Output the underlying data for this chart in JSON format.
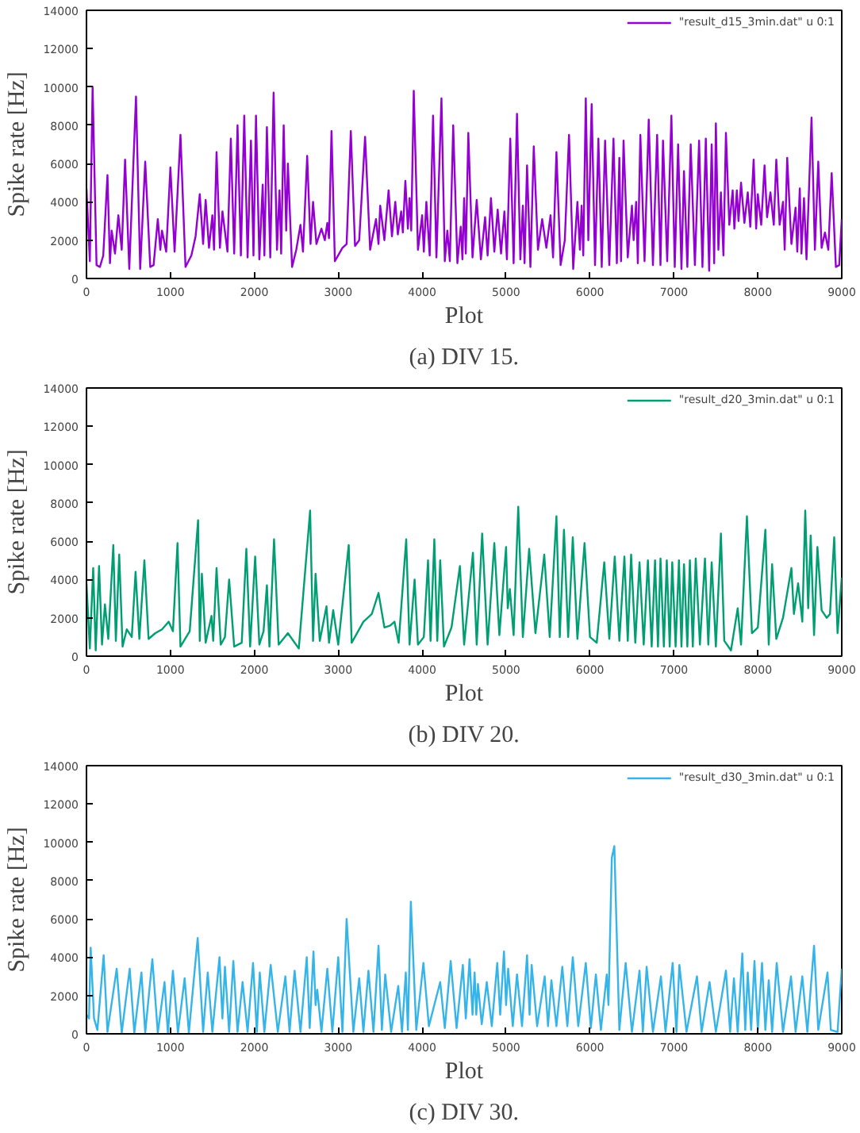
{
  "chart_data": [
    {
      "type": "line",
      "xlabel": "Plot",
      "ylabel": "Spike rate [Hz]",
      "annotations": [
        "(a) DIV 15."
      ],
      "xlim": [
        0,
        9000
      ],
      "ylim": [
        0,
        14000
      ],
      "xticks": [
        0,
        1000,
        2000,
        3000,
        4000,
        5000,
        6000,
        7000,
        8000,
        9000
      ],
      "yticks": [
        0,
        2000,
        4000,
        6000,
        8000,
        10000,
        12000,
        14000
      ],
      "grid": false,
      "legend": "top right",
      "x": [
        0,
        40,
        73,
        120,
        160,
        200,
        250,
        280,
        300,
        340,
        380,
        420,
        460,
        510,
        590,
        640,
        700,
        760,
        800,
        850,
        880,
        900,
        950,
        1000,
        1050,
        1120,
        1180,
        1250,
        1300,
        1350,
        1390,
        1420,
        1460,
        1500,
        1520,
        1550,
        1590,
        1620,
        1680,
        1720,
        1760,
        1800,
        1840,
        1880,
        1920,
        1960,
        1990,
        2020,
        2060,
        2100,
        2120,
        2150,
        2190,
        2230,
        2270,
        2300,
        2320,
        2350,
        2380,
        2400,
        2450,
        2500,
        2550,
        2580,
        2630,
        2670,
        2700,
        2740,
        2800,
        2840,
        2870,
        2890,
        2920,
        2960,
        3050,
        3100,
        3150,
        3200,
        3250,
        3320,
        3380,
        3450,
        3480,
        3500,
        3550,
        3600,
        3640,
        3680,
        3710,
        3750,
        3770,
        3800,
        3830,
        3850,
        3870,
        3900,
        3950,
        4000,
        4020,
        4050,
        4090,
        4130,
        4170,
        4230,
        4270,
        4300,
        4330,
        4370,
        4420,
        4460,
        4480,
        4500,
        4520,
        4550,
        4600,
        4650,
        4700,
        4750,
        4780,
        4820,
        4860,
        4900,
        4940,
        4980,
        5010,
        5050,
        5090,
        5130,
        5170,
        5200,
        5220,
        5250,
        5290,
        5330,
        5380,
        5430,
        5480,
        5530,
        5560,
        5600,
        5650,
        5700,
        5750,
        5800,
        5850,
        5880,
        5900,
        5920,
        5950,
        5980,
        6020,
        6060,
        6100,
        6140,
        6180,
        6230,
        6280,
        6320,
        6350,
        6370,
        6400,
        6450,
        6500,
        6520,
        6550,
        6570,
        6600,
        6650,
        6700,
        6750,
        6800,
        6840,
        6870,
        6920,
        6970,
        7010,
        7050,
        7090,
        7120,
        7160,
        7200,
        7250,
        7300,
        7340,
        7380,
        7420,
        7450,
        7480,
        7500,
        7530,
        7560,
        7590,
        7620,
        7660,
        7700,
        7720,
        7750,
        7770,
        7800,
        7840,
        7880,
        7910,
        7950,
        7980,
        8000,
        8040,
        8080,
        8110,
        8150,
        8190,
        8220,
        8260,
        8300,
        8320,
        8350,
        8400,
        8450,
        8470,
        8500,
        8520,
        8550,
        8580,
        8640,
        8680,
        8720,
        8760,
        8800,
        8840,
        8880,
        8930,
        8970,
        9000
      ],
      "series": [
        {
          "name": "\"result_d15_3min.dat\" u 0:1",
          "color": "#9400d3",
          "values": [
            4700,
            900,
            10000,
            700,
            600,
            1200,
            5400,
            800,
            2500,
            1300,
            3300,
            1500,
            6200,
            500,
            9500,
            500,
            6100,
            600,
            700,
            3100,
            1500,
            2500,
            1400,
            5800,
            1400,
            7500,
            600,
            1200,
            2200,
            4400,
            1800,
            4100,
            1600,
            3300,
            1500,
            6600,
            1600,
            3500,
            1400,
            7300,
            1300,
            8000,
            1200,
            8500,
            1100,
            7200,
            1200,
            8500,
            1000,
            4900,
            1200,
            7900,
            1100,
            9700,
            1500,
            4600,
            1300,
            8000,
            2500,
            6000,
            600,
            1500,
            2800,
            1400,
            6400,
            1800,
            4000,
            1800,
            2600,
            2000,
            2900,
            2100,
            7700,
            900,
            1600,
            1800,
            7700,
            1700,
            2000,
            7400,
            1500,
            3100,
            1800,
            3800,
            2000,
            4600,
            2200,
            4000,
            2300,
            3500,
            2400,
            5100,
            2600,
            4200,
            2500,
            9800,
            1500,
            3300,
            1400,
            4000,
            1200,
            8500,
            1100,
            9400,
            900,
            2500,
            900,
            8000,
            800,
            2700,
            1000,
            4200,
            1300,
            7600,
            1100,
            4100,
            1000,
            3200,
            1200,
            4200,
            1400,
            3600,
            1300,
            3500,
            1000,
            7300,
            800,
            8600,
            1000,
            3800,
            800,
            5900,
            600,
            6900,
            1500,
            3100,
            1600,
            3300,
            1100,
            6600,
            700,
            2000,
            7500,
            500,
            4000,
            1500,
            3800,
            1200,
            9400,
            2000,
            9100,
            700,
            7300,
            600,
            7200,
            700,
            7300,
            800,
            6300,
            900,
            7200,
            1100,
            3800,
            2000,
            4000,
            800,
            7500,
            900,
            8300,
            700,
            7500,
            700,
            7200,
            900,
            8500,
            600,
            7000,
            500,
            5600,
            600,
            7000,
            700,
            7200,
            600,
            7300,
            400,
            7000,
            800,
            8100,
            1500,
            4500,
            1200,
            7600,
            2800,
            4600,
            2600,
            4600,
            3000,
            5000,
            2900,
            4500,
            2700,
            6200,
            2600,
            4400,
            2800,
            5900,
            3200,
            4500,
            2800,
            6200,
            2800,
            4000,
            1500,
            6300,
            1800,
            3700,
            1400,
            4700,
            1300,
            4200,
            1000,
            8400,
            1500,
            6100,
            1600,
            2400,
            1500,
            5500,
            600,
            700,
            3100
          ]
        }
      ]
    },
    {
      "type": "line",
      "xlabel": "Plot",
      "ylabel": "Spike rate [Hz]",
      "annotations": [
        "(b) DIV 20."
      ],
      "xlim": [
        0,
        9000
      ],
      "ylim": [
        0,
        14000
      ],
      "xticks": [
        0,
        1000,
        2000,
        3000,
        4000,
        5000,
        6000,
        7000,
        8000,
        9000
      ],
      "yticks": [
        0,
        2000,
        4000,
        6000,
        8000,
        10000,
        12000,
        14000
      ],
      "grid": false,
      "legend": "top right",
      "x": [
        0,
        40,
        80,
        110,
        150,
        185,
        220,
        260,
        320,
        350,
        390,
        430,
        480,
        540,
        585,
        630,
        690,
        740,
        820,
        900,
        980,
        1030,
        1085,
        1120,
        1230,
        1330,
        1350,
        1375,
        1420,
        1490,
        1510,
        1550,
        1600,
        1650,
        1700,
        1760,
        1850,
        1905,
        1950,
        2010,
        2060,
        2110,
        2150,
        2180,
        2235,
        2290,
        2400,
        2530,
        2665,
        2700,
        2730,
        2780,
        2860,
        2890,
        2940,
        3000,
        3125,
        3160,
        3300,
        3400,
        3480,
        3550,
        3620,
        3670,
        3720,
        3810,
        3850,
        3910,
        3950,
        4020,
        4070,
        4100,
        4145,
        4180,
        4215,
        4260,
        4350,
        4450,
        4500,
        4605,
        4650,
        4715,
        4780,
        4860,
        4920,
        5000,
        5020,
        5045,
        5090,
        5145,
        5200,
        5275,
        5350,
        5455,
        5520,
        5600,
        5640,
        5690,
        5740,
        5795,
        5850,
        5935,
        6000,
        6080,
        6170,
        6230,
        6295,
        6350,
        6410,
        6450,
        6490,
        6540,
        6590,
        6640,
        6690,
        6735,
        6775,
        6810,
        6840,
        6880,
        6915,
        6950,
        6980,
        7020,
        7060,
        7090,
        7120,
        7160,
        7190,
        7225,
        7260,
        7310,
        7370,
        7410,
        7450,
        7500,
        7560,
        7600,
        7680,
        7760,
        7800,
        7870,
        7930,
        8000,
        8090,
        8130,
        8170,
        8220,
        8300,
        8400,
        8430,
        8480,
        8530,
        8565,
        8600,
        8630,
        8670,
        8710,
        8760,
        8820,
        8860,
        8910,
        8950,
        9000
      ],
      "series": [
        {
          "name": "\"result_d20_3min.dat\" u 0:1",
          "color": "#009e73",
          "values": [
            3800,
            400,
            4600,
            300,
            4700,
            600,
            2700,
            900,
            5800,
            800,
            5300,
            500,
            1400,
            1000,
            4400,
            900,
            5000,
            900,
            1200,
            1400,
            1800,
            1300,
            5900,
            500,
            1300,
            7100,
            800,
            4300,
            700,
            2100,
            800,
            4600,
            600,
            1000,
            4000,
            500,
            700,
            5600,
            500,
            5200,
            600,
            1300,
            3700,
            500,
            6100,
            600,
            1200,
            400,
            7600,
            800,
            4300,
            800,
            2600,
            700,
            2400,
            600,
            5800,
            700,
            1800,
            2200,
            3300,
            1500,
            1600,
            1800,
            700,
            6100,
            600,
            4000,
            600,
            1000,
            5000,
            800,
            6100,
            800,
            5000,
            500,
            1500,
            4700,
            600,
            5400,
            600,
            6400,
            600,
            5900,
            1100,
            5700,
            2500,
            3500,
            1100,
            7800,
            1000,
            5600,
            1200,
            5300,
            1000,
            7300,
            1000,
            6600,
            1000,
            6200,
            900,
            5900,
            1000,
            700,
            4900,
            900,
            5200,
            800,
            5200,
            800,
            5300,
            700,
            4900,
            600,
            5000,
            500,
            5000,
            500,
            5100,
            500,
            5000,
            500,
            4900,
            500,
            5000,
            500,
            4800,
            500,
            5000,
            500,
            5100,
            600,
            5100,
            600,
            4900,
            500,
            6400,
            800,
            300,
            2500,
            600,
            7300,
            1200,
            1500,
            6600,
            600,
            4800,
            900,
            2000,
            4600,
            2200,
            3800,
            1800,
            7600,
            2500,
            6300,
            1100,
            5700,
            2400,
            2000,
            2200,
            6200,
            1200,
            4100
          ]
        }
      ]
    },
    {
      "type": "line",
      "xlabel": "Plot",
      "ylabel": "Spike rate [Hz]",
      "annotations": [
        "(c) DIV 30."
      ],
      "xlim": [
        0,
        9000
      ],
      "ylim": [
        0,
        14000
      ],
      "xticks": [
        0,
        1000,
        2000,
        3000,
        4000,
        5000,
        6000,
        7000,
        8000,
        9000
      ],
      "yticks": [
        0,
        2000,
        4000,
        6000,
        8000,
        10000,
        12000,
        14000
      ],
      "grid": false,
      "legend": "top right",
      "x": [
        0,
        30,
        50,
        90,
        130,
        205,
        250,
        360,
        420,
        515,
        570,
        655,
        700,
        785,
        850,
        930,
        970,
        1030,
        1090,
        1170,
        1220,
        1325,
        1390,
        1445,
        1500,
        1585,
        1620,
        1650,
        1700,
        1750,
        1800,
        1860,
        1920,
        1985,
        2030,
        2065,
        2120,
        2195,
        2280,
        2370,
        2420,
        2480,
        2550,
        2625,
        2660,
        2705,
        2730,
        2750,
        2800,
        2870,
        2930,
        3000,
        3050,
        3100,
        3180,
        3250,
        3300,
        3360,
        3420,
        3480,
        3520,
        3560,
        3630,
        3715,
        3760,
        3805,
        3830,
        3865,
        3930,
        4015,
        4080,
        4215,
        4270,
        4340,
        4410,
        4485,
        4520,
        4565,
        4600,
        4625,
        4645,
        4665,
        4710,
        4770,
        4830,
        4895,
        4930,
        4975,
        5000,
        5025,
        5080,
        5130,
        5190,
        5250,
        5280,
        5305,
        5370,
        5460,
        5500,
        5540,
        5600,
        5670,
        5730,
        5795,
        5860,
        5950,
        6010,
        6070,
        6130,
        6200,
        6220,
        6260,
        6290,
        6350,
        6425,
        6500,
        6590,
        6630,
        6675,
        6750,
        6845,
        6900,
        6985,
        7030,
        7065,
        7150,
        7275,
        7330,
        7425,
        7500,
        7620,
        7670,
        7715,
        7760,
        7815,
        7850,
        7880,
        7920,
        7960,
        8000,
        8050,
        8090,
        8130,
        8170,
        8225,
        8300,
        8395,
        8450,
        8530,
        8590,
        8670,
        8720,
        8830,
        8870,
        8950,
        9000
      ],
      "series": [
        {
          "name": "\"result_d30_3min.dat\" u 0:1",
          "color": "#35b4e9",
          "values": [
            1000,
            800,
            4500,
            800,
            200,
            4100,
            100,
            3400,
            50,
            3400,
            50,
            3200,
            50,
            3900,
            50,
            2700,
            50,
            3300,
            50,
            2900,
            50,
            5000,
            100,
            3200,
            100,
            4000,
            800,
            3500,
            100,
            3800,
            100,
            2700,
            100,
            3700,
            100,
            3200,
            100,
            3600,
            100,
            3000,
            100,
            3300,
            100,
            4000,
            300,
            4300,
            1500,
            2300,
            100,
            3400,
            100,
            4000,
            100,
            6000,
            100,
            2900,
            100,
            3300,
            100,
            4600,
            200,
            3100,
            100,
            2500,
            100,
            3200,
            200,
            6900,
            200,
            3700,
            400,
            2700,
            300,
            3800,
            300,
            3600,
            800,
            3900,
            1000,
            3200,
            1000,
            2600,
            500,
            2700,
            400,
            3700,
            1000,
            4300,
            1500,
            3400,
            400,
            3100,
            400,
            4100,
            1000,
            3600,
            400,
            3000,
            400,
            2800,
            400,
            3500,
            400,
            4000,
            400,
            3700,
            300,
            3100,
            200,
            3100,
            1500,
            9200,
            9800,
            200,
            3700,
            100,
            3300,
            100,
            3500,
            100,
            3000,
            100,
            3700,
            100,
            3600,
            100,
            3000,
            100,
            2700,
            100,
            3300,
            100,
            2900,
            100,
            4200,
            200,
            3200,
            200,
            3800,
            200,
            3700,
            200,
            2800,
            100,
            3700,
            100,
            3000,
            100,
            3000,
            100,
            4600,
            200,
            3200,
            200,
            100,
            3400
          ]
        }
      ]
    }
  ]
}
